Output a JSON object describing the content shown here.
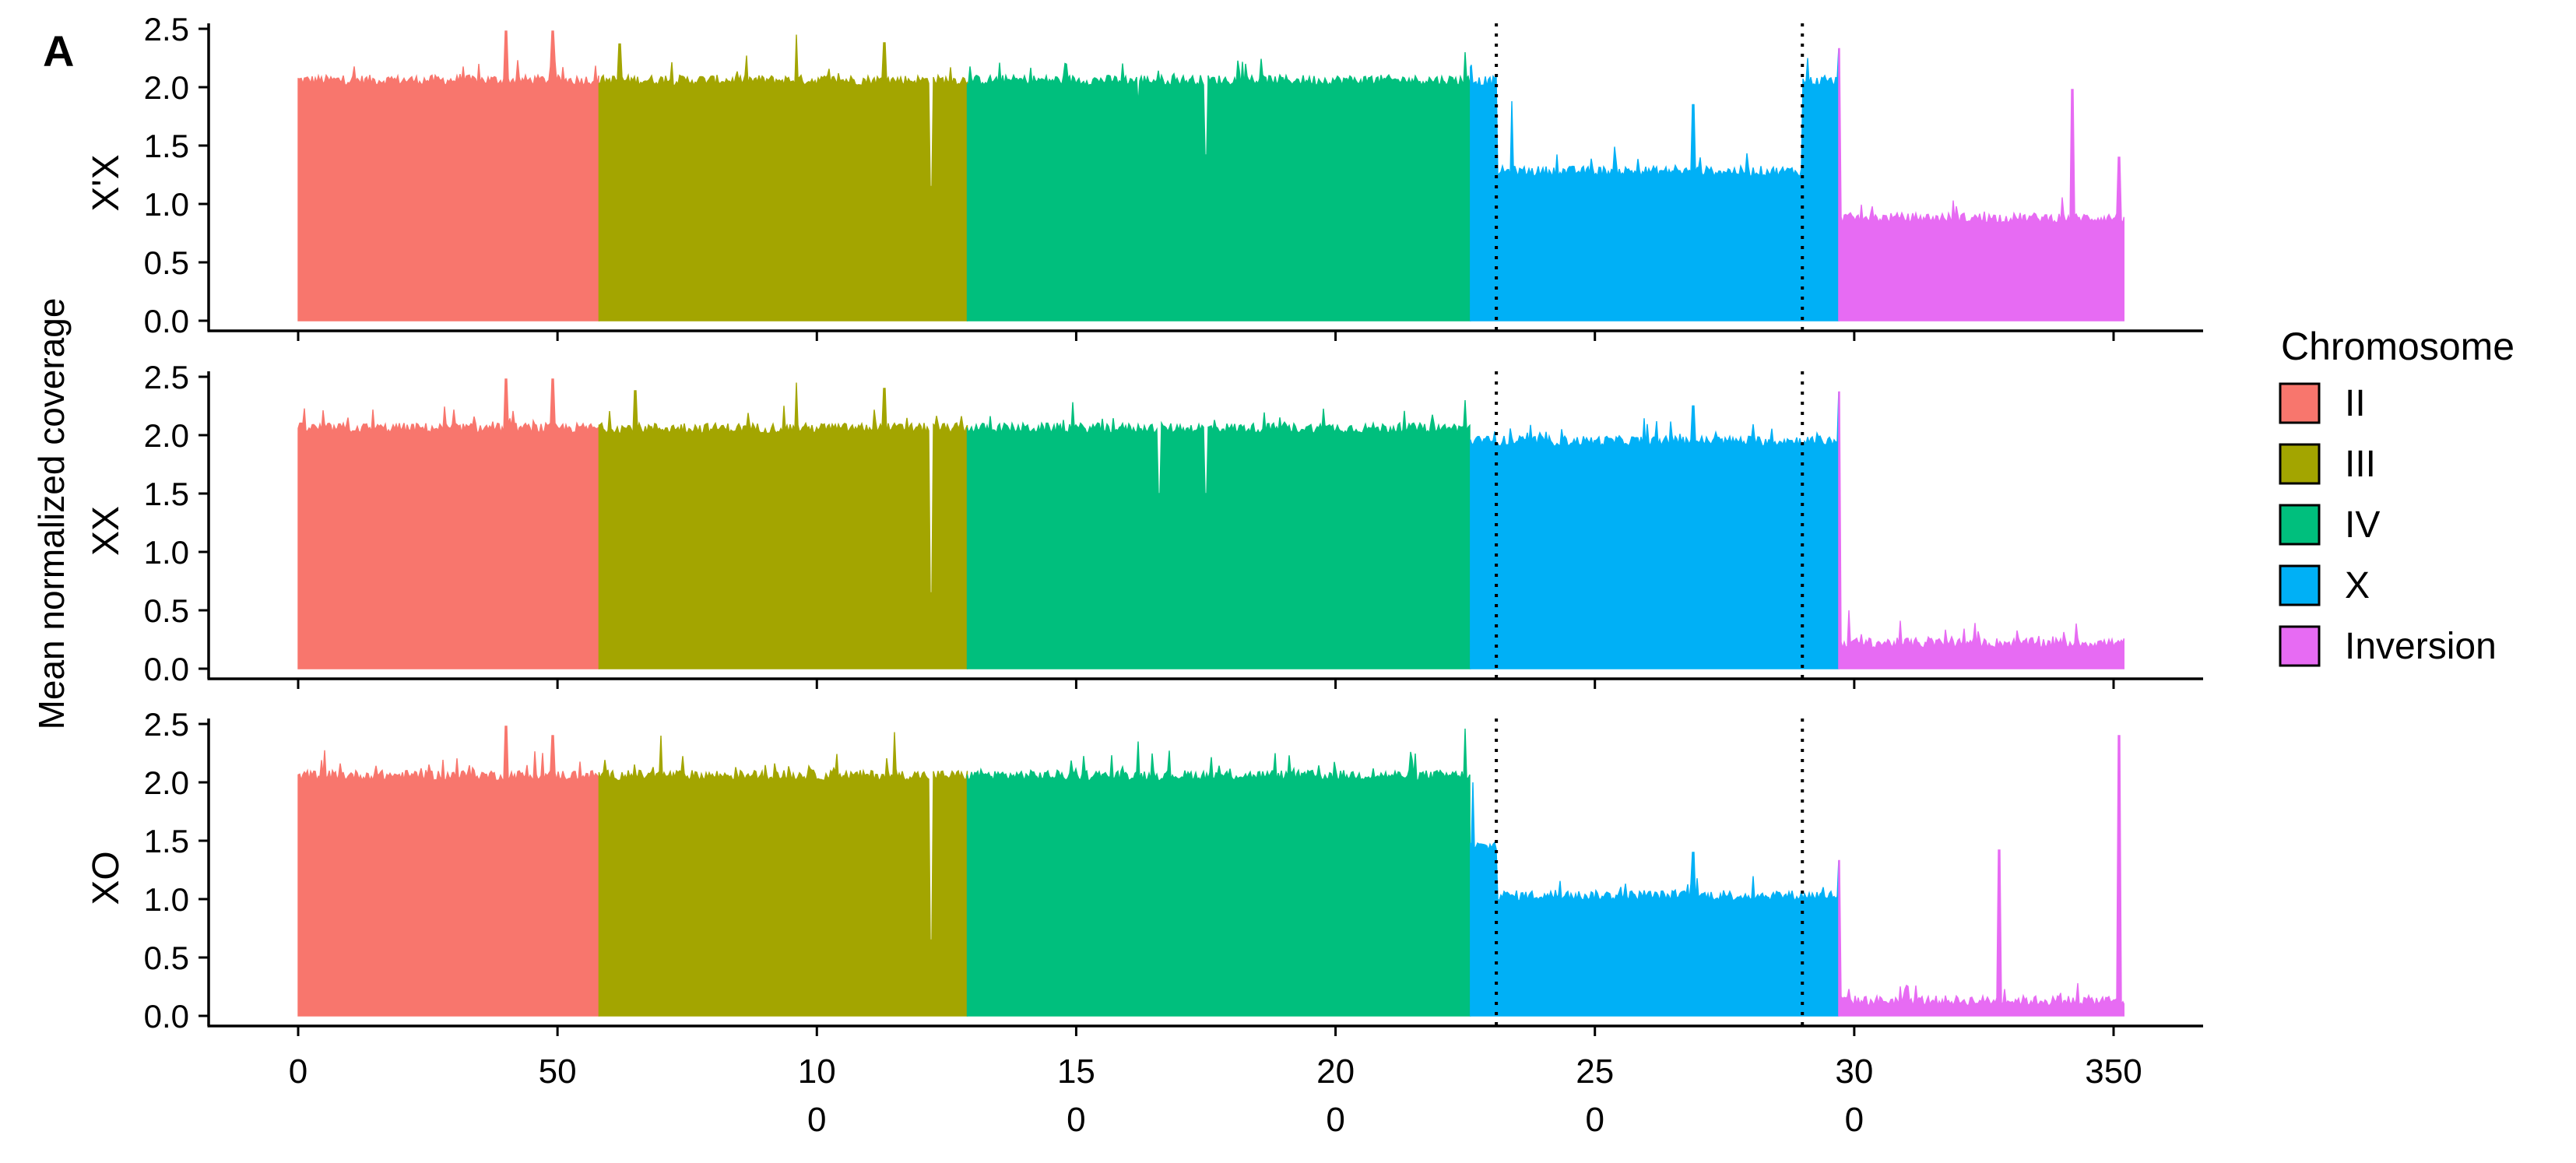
{
  "panel_label": "A",
  "chart_data": {
    "type": "area",
    "ylabel": "Mean normalized coverage",
    "xlim": [
      0,
      352
    ],
    "ylim": [
      0,
      2.6
    ],
    "x_ticks": [
      {
        "value": 0,
        "lines": [
          "0"
        ]
      },
      {
        "value": 50,
        "lines": [
          "50"
        ]
      },
      {
        "value": 100,
        "lines": [
          "10",
          "0"
        ]
      },
      {
        "value": 150,
        "lines": [
          "15",
          "0"
        ]
      },
      {
        "value": 200,
        "lines": [
          "20",
          "0"
        ]
      },
      {
        "value": 250,
        "lines": [
          "25",
          "0"
        ]
      },
      {
        "value": 300,
        "lines": [
          "30",
          "0"
        ]
      },
      {
        "value": 350,
        "lines": [
          "350"
        ]
      }
    ],
    "y_ticks": [
      {
        "value": 0.0,
        "label": "0.0"
      },
      {
        "value": 0.5,
        "label": "0.5"
      },
      {
        "value": 1.0,
        "label": "1.0"
      },
      {
        "value": 1.5,
        "label": "1.5"
      },
      {
        "value": 2.0,
        "label": "2.0"
      },
      {
        "value": 2.5,
        "label": "2.5"
      }
    ],
    "dotted_lines_x": [
      231,
      290
    ],
    "grid": false,
    "legend": {
      "title": "Chromosome",
      "position": "right",
      "entries": [
        {
          "label": "II",
          "color": "#F8766D"
        },
        {
          "label": "III",
          "color": "#A3A500"
        },
        {
          "label": "IV",
          "color": "#00BF7D"
        },
        {
          "label": "X",
          "color": "#00B0F6"
        },
        {
          "label": "Inversion",
          "color": "#E76BF3"
        }
      ]
    },
    "segments": [
      {
        "name": "II",
        "start": 0,
        "end": 58,
        "color": "#F8766D"
      },
      {
        "name": "III",
        "start": 58,
        "end": 129,
        "color": "#A3A500"
      },
      {
        "name": "IV",
        "start": 129,
        "end": 226,
        "color": "#00BF7D"
      },
      {
        "name": "X",
        "start": 226,
        "end": 297,
        "color": "#00B0F6"
      },
      {
        "name": "Inversion",
        "start": 297,
        "end": 352,
        "color": "#E76BF3"
      }
    ],
    "panels": [
      {
        "strip_label": "X'X",
        "levels": [
          {
            "start": 0,
            "end": 226,
            "mean": 2.06
          },
          {
            "start": 226,
            "end": 231,
            "mean": 2.05
          },
          {
            "start": 231,
            "end": 290,
            "mean": 1.28
          },
          {
            "start": 290,
            "end": 297,
            "mean": 2.05
          },
          {
            "start": 297,
            "end": 352,
            "mean": 0.88
          }
        ],
        "spikes": [
          {
            "x": 40,
            "y": 2.48
          },
          {
            "x": 49,
            "y": 2.48
          },
          {
            "x": 62,
            "y": 2.37
          },
          {
            "x": 96,
            "y": 2.45
          },
          {
            "x": 113,
            "y": 2.38
          },
          {
            "x": 122,
            "y": 1.15
          },
          {
            "x": 162,
            "y": 1.85
          },
          {
            "x": 175,
            "y": 1.42
          },
          {
            "x": 225,
            "y": 2.3
          },
          {
            "x": 234,
            "y": 1.88
          },
          {
            "x": 269,
            "y": 1.85
          },
          {
            "x": 291,
            "y": 2.25
          },
          {
            "x": 297,
            "y": 2.33
          },
          {
            "x": 342,
            "y": 1.98
          },
          {
            "x": 351,
            "y": 1.4
          }
        ]
      },
      {
        "strip_label": "XX",
        "levels": [
          {
            "start": 0,
            "end": 226,
            "mean": 2.06
          },
          {
            "start": 226,
            "end": 297,
            "mean": 1.95
          },
          {
            "start": 297,
            "end": 352,
            "mean": 0.22
          }
        ],
        "spikes": [
          {
            "x": 40,
            "y": 2.48
          },
          {
            "x": 49,
            "y": 2.48
          },
          {
            "x": 65,
            "y": 2.38
          },
          {
            "x": 96,
            "y": 2.45
          },
          {
            "x": 113,
            "y": 2.4
          },
          {
            "x": 122,
            "y": 0.65
          },
          {
            "x": 166,
            "y": 1.5
          },
          {
            "x": 175,
            "y": 1.5
          },
          {
            "x": 225,
            "y": 2.3
          },
          {
            "x": 269,
            "y": 2.25
          },
          {
            "x": 297,
            "y": 2.37
          },
          {
            "x": 299,
            "y": 0.5
          }
        ]
      },
      {
        "strip_label": "XO",
        "levels": [
          {
            "start": 0,
            "end": 226,
            "mean": 2.06
          },
          {
            "start": 226,
            "end": 231,
            "mean": 1.45
          },
          {
            "start": 231,
            "end": 297,
            "mean": 1.03
          },
          {
            "start": 297,
            "end": 352,
            "mean": 0.13
          }
        ],
        "spikes": [
          {
            "x": 40,
            "y": 2.48
          },
          {
            "x": 49,
            "y": 2.4
          },
          {
            "x": 70,
            "y": 2.4
          },
          {
            "x": 115,
            "y": 2.43
          },
          {
            "x": 122,
            "y": 0.65
          },
          {
            "x": 162,
            "y": 2.35
          },
          {
            "x": 225,
            "y": 2.46
          },
          {
            "x": 226.5,
            "y": 2.0
          },
          {
            "x": 269,
            "y": 1.4
          },
          {
            "x": 297,
            "y": 1.33
          },
          {
            "x": 328,
            "y": 1.42
          },
          {
            "x": 351,
            "y": 2.4
          }
        ]
      }
    ]
  }
}
